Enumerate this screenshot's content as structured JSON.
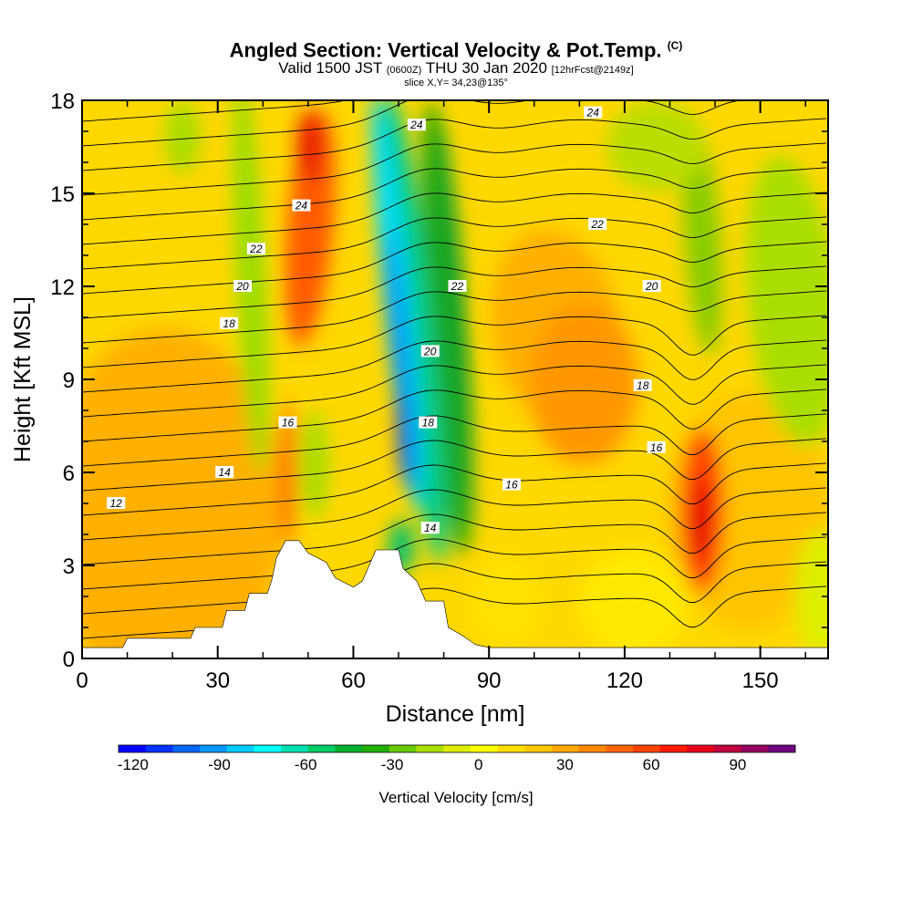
{
  "title": {
    "main": "Angled Section: Vertical Velocity & Pot.Temp.",
    "main_unit": "(C)",
    "valid_prefix": "Valid 1500 JST",
    "valid_z": "(0600Z)",
    "valid_date": "THU 30 Jan 2020",
    "valid_fcst": "[12hrFcst@2149z]",
    "slice": "slice X,Y= 34,23@135°"
  },
  "chart_data": {
    "type": "heatmap",
    "xlabel": "Distance [nm]",
    "ylabel": "Height [Kft MSL]",
    "xlim": [
      0,
      165
    ],
    "ylim": [
      0,
      18
    ],
    "x_ticks": [
      0,
      30,
      60,
      90,
      120,
      150
    ],
    "y_ticks": [
      0,
      3,
      6,
      9,
      12,
      15,
      18
    ],
    "grid": false,
    "colorbar": {
      "title": "Vertical Velocity [cm/s]",
      "min": -125,
      "max": 110,
      "ticks": [
        -120,
        -90,
        -60,
        -30,
        0,
        30,
        60,
        90
      ],
      "colors": [
        "#0000ff",
        "#0033ff",
        "#0066ff",
        "#0099ff",
        "#00ccff",
        "#00ffff",
        "#00e0b0",
        "#00cc66",
        "#00b030",
        "#22b000",
        "#66cc00",
        "#aadd00",
        "#ddee00",
        "#ffff00",
        "#ffe000",
        "#ffc800",
        "#ffa800",
        "#ff8800",
        "#ff6800",
        "#ff4400",
        "#ff1a00",
        "#e8001a",
        "#c00040",
        "#960060",
        "#6e0080"
      ]
    },
    "terrain_kft": [
      [
        0,
        0.35
      ],
      [
        9,
        0.35
      ],
      [
        10,
        0.65
      ],
      [
        24,
        0.65
      ],
      [
        25,
        1.0
      ],
      [
        31,
        1.0
      ],
      [
        32,
        1.55
      ],
      [
        36,
        1.55
      ],
      [
        37,
        2.1
      ],
      [
        41,
        2.1
      ],
      [
        42,
        2.55
      ],
      [
        43,
        3.25
      ],
      [
        45,
        3.8
      ],
      [
        48,
        3.8
      ],
      [
        50,
        3.4
      ],
      [
        54,
        3.1
      ],
      [
        56,
        2.6
      ],
      [
        60,
        2.3
      ],
      [
        62,
        2.5
      ],
      [
        65,
        3.5
      ],
      [
        70,
        3.5
      ],
      [
        71,
        2.9
      ],
      [
        74,
        2.5
      ],
      [
        76,
        1.85
      ],
      [
        80,
        1.85
      ],
      [
        81,
        1.0
      ],
      [
        84,
        0.75
      ],
      [
        87,
        0.45
      ],
      [
        90,
        0.35
      ],
      [
        165,
        0.35
      ]
    ],
    "velocity_features": [
      {
        "x": 48,
        "y": 15,
        "value": 70
      },
      {
        "x": 34,
        "y": 10,
        "value": -25
      },
      {
        "x": 68,
        "y": 11,
        "value": -110
      },
      {
        "x": 78,
        "y": 12,
        "value": -45
      },
      {
        "x": 137,
        "y": 5,
        "value": 70
      },
      {
        "x": 132,
        "y": 12,
        "value": -25
      },
      {
        "x": 22,
        "y": 4,
        "value": 45
      },
      {
        "x": 108,
        "y": 8,
        "value": 35
      }
    ],
    "isentrope_labels": [
      {
        "x": 7.5,
        "y": 5.0,
        "value": "12"
      },
      {
        "x": 31.5,
        "y": 6.0,
        "value": "14"
      },
      {
        "x": 77,
        "y": 4.2,
        "value": "14"
      },
      {
        "x": 45.5,
        "y": 7.6,
        "value": "16"
      },
      {
        "x": 95,
        "y": 5.6,
        "value": "16"
      },
      {
        "x": 127,
        "y": 6.8,
        "value": "16"
      },
      {
        "x": 32.5,
        "y": 10.8,
        "value": "18"
      },
      {
        "x": 76.5,
        "y": 7.6,
        "value": "18"
      },
      {
        "x": 124,
        "y": 8.8,
        "value": "18"
      },
      {
        "x": 35.5,
        "y": 12.0,
        "value": "20"
      },
      {
        "x": 77,
        "y": 9.9,
        "value": "20"
      },
      {
        "x": 126,
        "y": 12.0,
        "value": "20"
      },
      {
        "x": 38.5,
        "y": 13.2,
        "value": "22"
      },
      {
        "x": 83,
        "y": 12.0,
        "value": "22"
      },
      {
        "x": 114,
        "y": 14.0,
        "value": "22"
      },
      {
        "x": 48.5,
        "y": 14.6,
        "value": "24"
      },
      {
        "x": 74,
        "y": 17.2,
        "value": "24"
      },
      {
        "x": 113,
        "y": 17.6,
        "value": "24"
      }
    ]
  }
}
